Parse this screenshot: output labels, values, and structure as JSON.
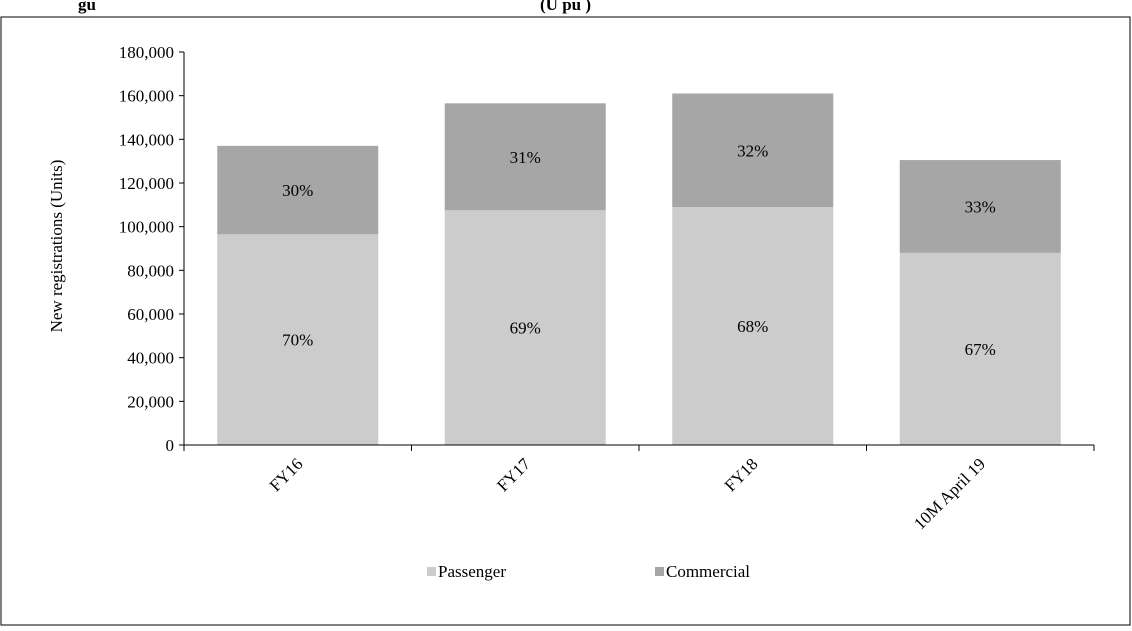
{
  "title_partial": "gu",
  "title_partial_bold": "(U    pu    )",
  "chart_data": {
    "type": "bar",
    "stacked": true,
    "categories": [
      "FY16",
      "FY17",
      "FY18",
      "10M April 19"
    ],
    "series": [
      {
        "name": "Passenger",
        "color": "#cccccc",
        "values": [
          96500,
          107500,
          109000,
          88000
        ],
        "labels": [
          "70%",
          "69%",
          "68%",
          "67%"
        ]
      },
      {
        "name": "Commercial",
        "color": "#a6a6a6",
        "values": [
          40500,
          49000,
          52000,
          42500
        ],
        "labels": [
          "30%",
          "31%",
          "32%",
          "33%"
        ]
      }
    ],
    "ylabel": "New registrations (Units)",
    "xlabel": "",
    "ylim": [
      0,
      180000
    ],
    "yticks": [
      0,
      20000,
      40000,
      60000,
      80000,
      100000,
      120000,
      140000,
      160000,
      180000
    ],
    "ytick_labels": [
      "0",
      "20,000",
      "40,000",
      "60,000",
      "80,000",
      "100,000",
      "120,000",
      "140,000",
      "160,000",
      "180,000"
    ],
    "grid": false,
    "legend_position": "bottom"
  }
}
